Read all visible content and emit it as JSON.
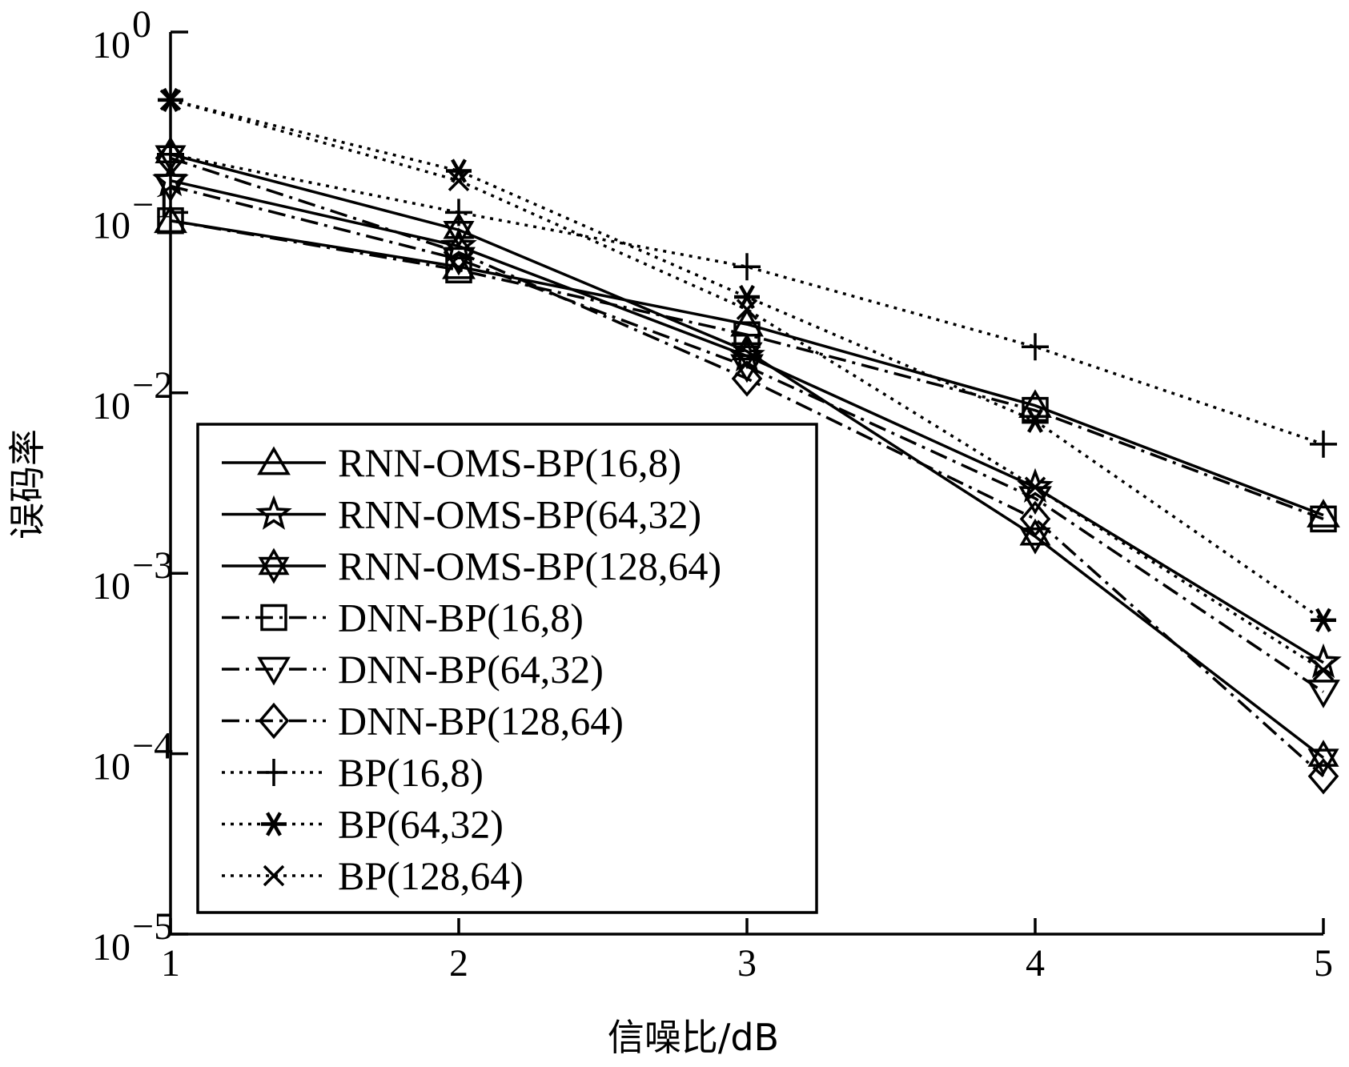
{
  "chart_data": {
    "type": "line",
    "title": "",
    "xlabel": "信噪比/dB",
    "ylabel": "误码率",
    "x": [
      1,
      2,
      3,
      4,
      5
    ],
    "x_ticks": [
      "1",
      "2",
      "3",
      "4",
      "5"
    ],
    "xlim": [
      1,
      5
    ],
    "yscale": "log",
    "ylim": [
      1e-05,
      1
    ],
    "y_ticks": [
      {
        "value": 1,
        "base": "10",
        "exp": "0"
      },
      {
        "value": 0.1,
        "base": "10",
        "exp": "−1"
      },
      {
        "value": 0.01,
        "base": "10",
        "exp": "−2"
      },
      {
        "value": 0.001,
        "base": "10",
        "exp": "−3"
      },
      {
        "value": 0.0001,
        "base": "10",
        "exp": "−4"
      },
      {
        "value": 1e-05,
        "base": "10",
        "exp": "−5"
      }
    ],
    "grid": false,
    "legend_position": "lower-left",
    "series": [
      {
        "name": "RNN-OMS-BP(16,8)",
        "line": "solid",
        "marker": "triangle-up",
        "values": [
          0.09,
          0.05,
          0.024,
          0.0085,
          0.0021
        ]
      },
      {
        "name": "RNN-OMS-BP(64,32)",
        "line": "solid",
        "marker": "star5",
        "values": [
          0.15,
          0.065,
          0.016,
          0.003,
          0.00032
        ]
      },
      {
        "name": "RNN-OMS-BP(128,64)",
        "line": "solid",
        "marker": "star6",
        "values": [
          0.21,
          0.08,
          0.017,
          0.0016,
          9.5e-05
        ]
      },
      {
        "name": "DNN-BP(16,8)",
        "line": "dashdot",
        "marker": "square",
        "values": [
          0.09,
          0.048,
          0.021,
          0.008,
          0.002
        ]
      },
      {
        "name": "DNN-BP(64,32)",
        "line": "dashdot",
        "marker": "triangle-down",
        "values": [
          0.14,
          0.055,
          0.014,
          0.0026,
          0.00022
        ]
      },
      {
        "name": "DNN-BP(128,64)",
        "line": "dashdot",
        "marker": "diamond",
        "values": [
          0.2,
          0.06,
          0.012,
          0.002,
          7.5e-05
        ]
      },
      {
        "name": "BP(16,8)",
        "line": "dotted",
        "marker": "plus",
        "values": [
          0.21,
          0.1,
          0.05,
          0.018,
          0.0052
        ]
      },
      {
        "name": "BP(64,32)",
        "line": "dotted",
        "marker": "asterisk",
        "values": [
          0.42,
          0.17,
          0.034,
          0.007,
          0.00055
        ]
      },
      {
        "name": "BP(128,64)",
        "line": "dotted",
        "marker": "x",
        "values": [
          0.42,
          0.15,
          0.029,
          0.003,
          0.00029
        ]
      }
    ]
  }
}
